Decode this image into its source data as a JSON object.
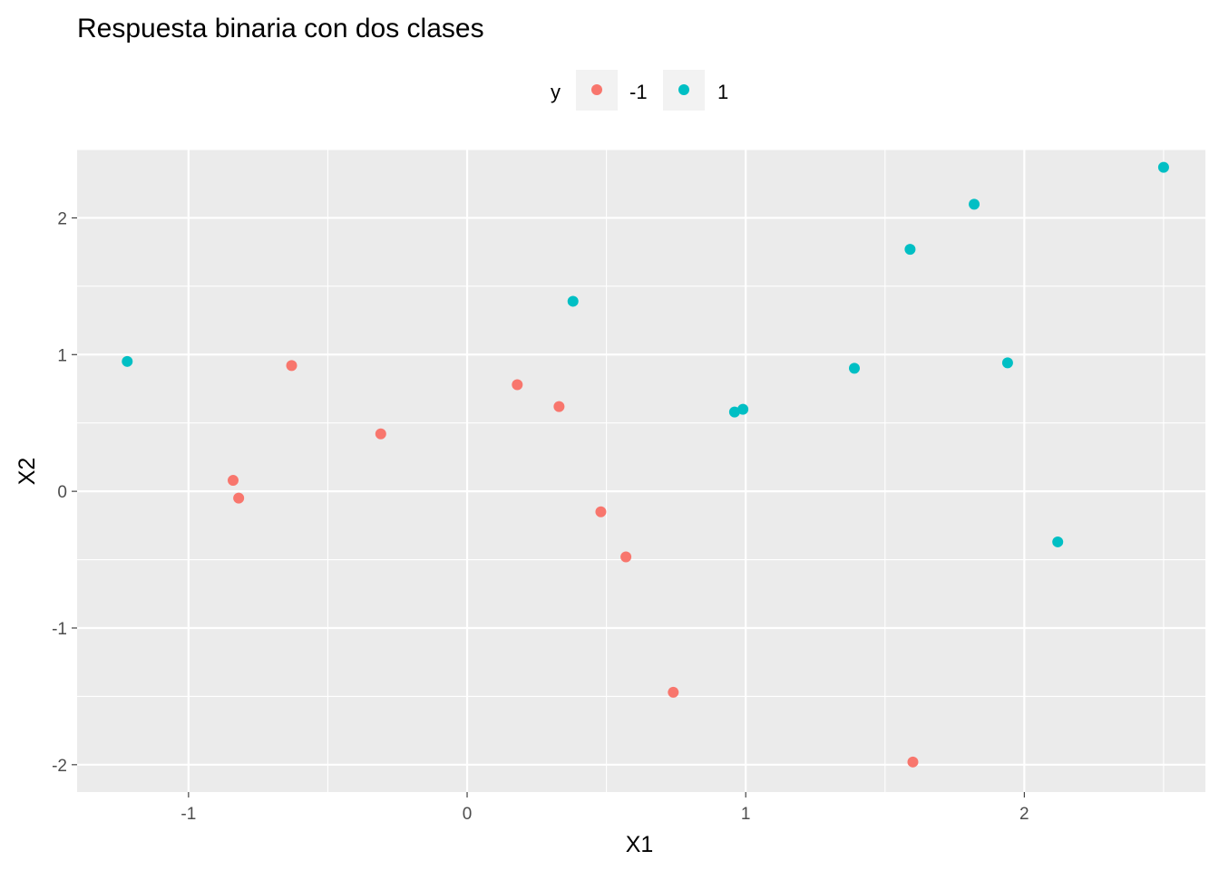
{
  "chart_data": {
    "type": "scatter",
    "title": "Respuesta binaria con dos clases",
    "xlabel": "X1",
    "ylabel": "X2",
    "xlim": [
      -1.4,
      2.65
    ],
    "ylim": [
      -2.2,
      2.5
    ],
    "xticks": [
      -1,
      0,
      1,
      2
    ],
    "yticks": [
      -2,
      -1,
      0,
      1,
      2
    ],
    "xtick_labels": [
      "-1",
      "0",
      "1",
      "2"
    ],
    "ytick_labels": [
      "-2",
      "-1",
      "0",
      "1",
      "2"
    ],
    "grid": true,
    "legend": {
      "title": "y",
      "position": "top"
    },
    "series": [
      {
        "name": "-1",
        "color": "#F8766D",
        "points": [
          {
            "x": -0.63,
            "y": 0.92
          },
          {
            "x": -0.84,
            "y": 0.08
          },
          {
            "x": -0.82,
            "y": -0.05
          },
          {
            "x": -0.31,
            "y": 0.42
          },
          {
            "x": 0.18,
            "y": 0.78
          },
          {
            "x": 0.33,
            "y": 0.62
          },
          {
            "x": 0.48,
            "y": -0.15
          },
          {
            "x": 0.57,
            "y": -0.48
          },
          {
            "x": 0.74,
            "y": -1.47
          },
          {
            "x": 1.6,
            "y": -1.98
          }
        ]
      },
      {
        "name": "1",
        "color": "#00BFC4",
        "points": [
          {
            "x": -1.22,
            "y": 0.95
          },
          {
            "x": 0.38,
            "y": 1.39
          },
          {
            "x": 0.96,
            "y": 0.58
          },
          {
            "x": 0.99,
            "y": 0.6
          },
          {
            "x": 1.39,
            "y": 0.9
          },
          {
            "x": 1.59,
            "y": 1.77
          },
          {
            "x": 1.82,
            "y": 2.1
          },
          {
            "x": 1.94,
            "y": 0.94
          },
          {
            "x": 2.12,
            "y": -0.37
          },
          {
            "x": 2.5,
            "y": 2.37
          }
        ]
      }
    ]
  }
}
